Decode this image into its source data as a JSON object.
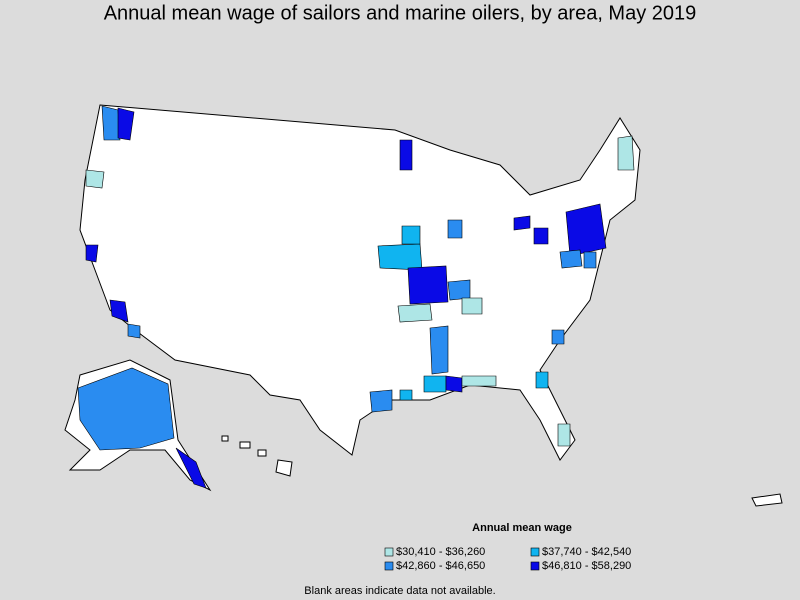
{
  "title": "Annual mean wage of sailors and marine oilers, by area, May 2019",
  "legend": {
    "title": "Annual mean wage",
    "items": [
      {
        "label": "$30,410 - $36,260",
        "color": "#aee6e6"
      },
      {
        "label": "$37,740 - $42,540",
        "color": "#10b4f0"
      },
      {
        "label": "$42,860 - $46,650",
        "color": "#2a8cf0"
      },
      {
        "label": "$46,810 - $58,290",
        "color": "#0a0ae6"
      }
    ]
  },
  "note": "Blank areas indicate data not available."
}
